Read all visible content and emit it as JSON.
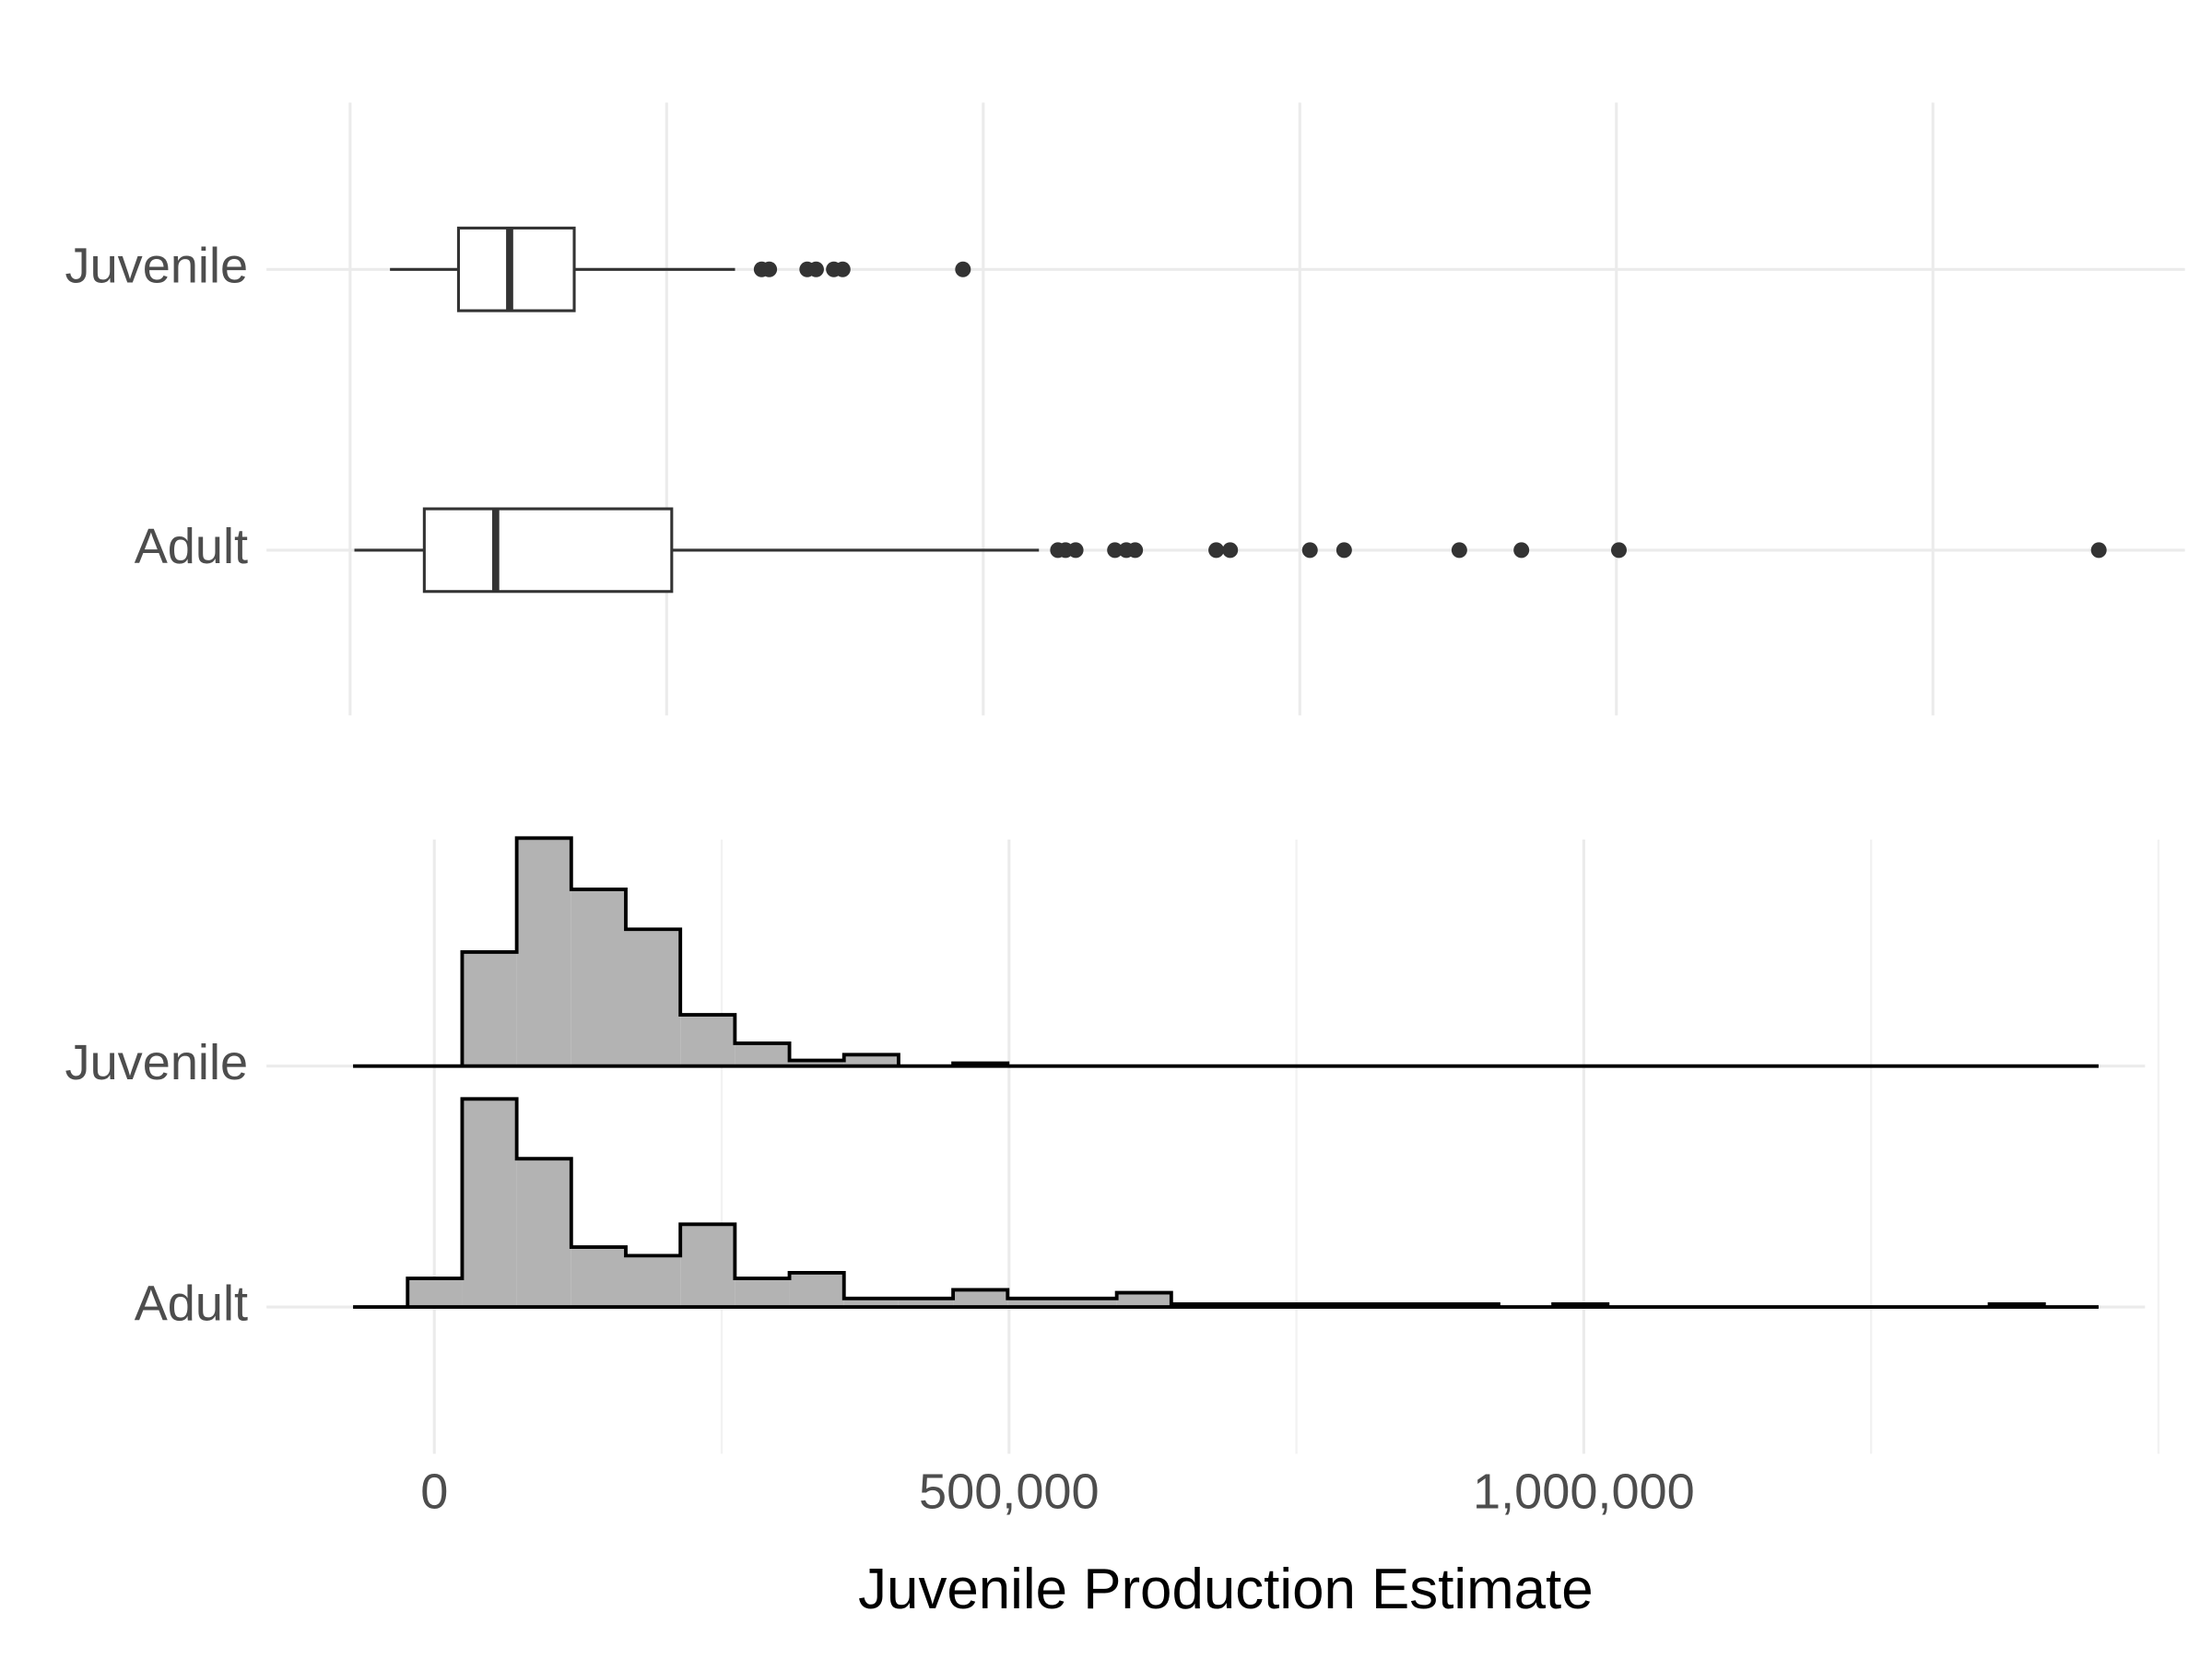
{
  "chart_data": [
    {
      "type": "boxplot",
      "categories": [
        "Juvenile",
        "Adult"
      ],
      "boxes": [
        {
          "whislo": 31500,
          "q1": 85600,
          "med": 126000,
          "q3": 177000,
          "whishi": 304000,
          "fliers": [
            325000,
            331000,
            361000,
            368000,
            382000,
            389000,
            484000
          ]
        },
        {
          "whislo": 3400,
          "q1": 58600,
          "med": 115000,
          "q3": 254000,
          "whishi": 544000,
          "fliers": [
            559000,
            565000,
            573000,
            604000,
            613000,
            620000,
            684000,
            695000,
            758000,
            785000,
            876000,
            925000,
            1002000,
            1381000
          ]
        }
      ],
      "xlim": [
        -66000,
        1449000
      ],
      "xgrid": [
        0,
        250000,
        500000,
        750000,
        1000000,
        1250000
      ],
      "color": "#333333"
    },
    {
      "type": "ridgeline_histogram",
      "bins": [
        -70700,
        -23244,
        24212,
        71668,
        119124,
        166580,
        214036,
        261492,
        308948,
        356404,
        403860,
        451316,
        498772,
        546228,
        593684,
        641140,
        688596,
        736052,
        783508,
        830964,
        878420,
        925876,
        973332,
        1020788,
        1068244,
        1115700,
        1163156,
        1210612,
        1258068,
        1305524,
        1352980,
        1400436,
        1447892
      ],
      "series": [
        {
          "name": "Juvenile",
          "values": [
            0,
            0,
            40,
            80,
            62,
            48,
            18,
            8,
            2,
            4,
            0,
            1,
            0,
            0,
            0,
            0,
            0,
            0,
            0,
            0,
            0,
            0,
            0,
            0,
            0,
            0,
            0,
            0,
            0,
            0,
            0,
            0
          ]
        },
        {
          "name": "Adult",
          "values": [
            0,
            10,
            73,
            52,
            21,
            18,
            29,
            10,
            12,
            3,
            3,
            6,
            3,
            3,
            5,
            1,
            1,
            1,
            1,
            1,
            1,
            0,
            1,
            0,
            0,
            0,
            0,
            0,
            0,
            0,
            1,
            0
          ]
        }
      ],
      "xlim": [
        -146000,
        1523000
      ],
      "xticks": [
        0,
        {
          "value": 500000,
          "label": "500,000"
        },
        {
          "value": 1000000,
          "label": "1,000,000"
        }
      ],
      "minor_xticks": [
        250000,
        750000,
        1250000,
        1500000
      ],
      "xlabel": "Juvenile Production Estimate",
      "fill": "#b3b3b3"
    }
  ]
}
